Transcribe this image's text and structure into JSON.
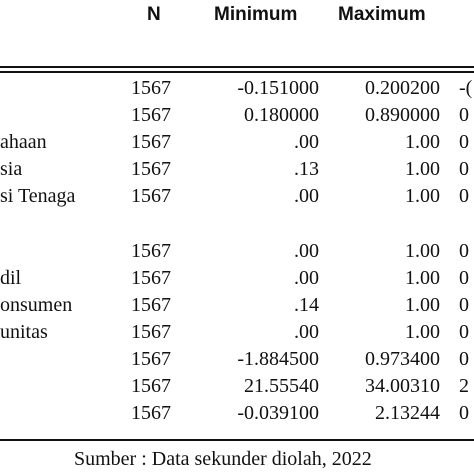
{
  "headers": {
    "n": "N",
    "minimum": "Minimum",
    "maximum": "Maximum"
  },
  "rows": [
    {
      "label": "",
      "n": "1567",
      "min": "-0.151000",
      "max": "0.200200",
      "extra": "-("
    },
    {
      "label": "",
      "n": "1567",
      "min": "0.180000",
      "max": "0.890000",
      "extra": "0"
    },
    {
      "label": "ahaan",
      "n": "1567",
      "min": ".00",
      "max": "1.00",
      "extra": "0"
    },
    {
      "label": "sia",
      "n": "1567",
      "min": ".13",
      "max": "1.00",
      "extra": "0"
    },
    {
      "label": "si Tenaga",
      "n": "1567",
      "min": ".00",
      "max": "1.00",
      "extra": "0"
    },
    {
      "label": "",
      "n": "1567",
      "min": ".00",
      "max": "1.00",
      "extra": "0"
    },
    {
      "label": "dil",
      "n": "1567",
      "min": ".00",
      "max": "1.00",
      "extra": "0"
    },
    {
      "label": "onsumen",
      "n": "1567",
      "min": ".14",
      "max": "1.00",
      "extra": "0"
    },
    {
      "label": "unitas",
      "n": "1567",
      "min": ".00",
      "max": "1.00",
      "extra": "0"
    },
    {
      "label": "",
      "n": "1567",
      "min": "-1.884500",
      "max": "0.973400",
      "extra": "0"
    },
    {
      "label": "",
      "n": "1567",
      "min": "21.55540",
      "max": "34.00310",
      "extra": "2"
    },
    {
      "label": "",
      "n": "1567",
      "min": "-0.039100",
      "max": "2.13244",
      "extra": "0"
    }
  ],
  "source": "Sumber : Data sekunder diolah, 2022"
}
